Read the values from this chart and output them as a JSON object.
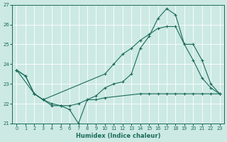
{
  "xlabel": "Humidex (Indice chaleur)",
  "xlim": [
    -0.5,
    23.5
  ],
  "ylim": [
    21,
    27
  ],
  "yticks": [
    21,
    22,
    23,
    24,
    25,
    26,
    27
  ],
  "xticks": [
    0,
    1,
    2,
    3,
    4,
    5,
    6,
    7,
    8,
    9,
    10,
    11,
    12,
    13,
    14,
    15,
    16,
    17,
    18,
    19,
    20,
    21,
    22,
    23
  ],
  "bg_color": "#cce9e4",
  "line_color": "#1a6b5a",
  "grid_color": "#ffffff",
  "line1_x": [
    0,
    1,
    2,
    3,
    4,
    5,
    6,
    7,
    8,
    9,
    10,
    11,
    12,
    13,
    14,
    15,
    16,
    17,
    18,
    19,
    20,
    21,
    22,
    23
  ],
  "line1_y": [
    23.7,
    23.4,
    22.5,
    22.2,
    21.9,
    21.9,
    21.7,
    21.0,
    22.2,
    22.4,
    22.8,
    23.0,
    23.1,
    23.5,
    24.8,
    25.4,
    26.3,
    26.8,
    26.5,
    25.0,
    25.0,
    24.2,
    23.0,
    22.5
  ],
  "line2_x": [
    0,
    2,
    3,
    4,
    5,
    6,
    7,
    8,
    9,
    10,
    14,
    15,
    16,
    17,
    18,
    19,
    20,
    21,
    22,
    23
  ],
  "line2_y": [
    23.7,
    22.5,
    22.2,
    22.0,
    21.9,
    21.9,
    22.0,
    22.2,
    22.2,
    22.3,
    22.5,
    22.5,
    22.5,
    22.5,
    22.5,
    22.5,
    22.5,
    22.5,
    22.5,
    22.5
  ],
  "line3_x": [
    0,
    1,
    2,
    3,
    10,
    11,
    12,
    13,
    14,
    15,
    16,
    17,
    18,
    19,
    20,
    21,
    22,
    23
  ],
  "line3_y": [
    23.7,
    23.4,
    22.5,
    22.2,
    23.5,
    24.0,
    24.5,
    24.8,
    25.2,
    25.5,
    25.8,
    25.9,
    25.9,
    25.0,
    24.2,
    23.3,
    22.8,
    22.5
  ]
}
